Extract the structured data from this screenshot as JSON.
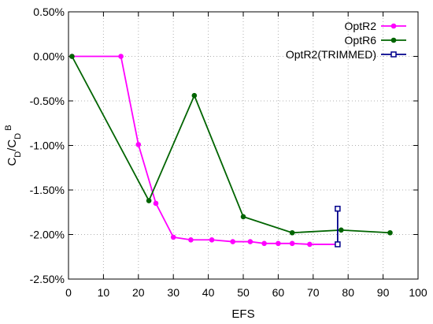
{
  "chart_data": {
    "type": "line",
    "xlabel": "EFS",
    "ylabel": {
      "main": "C",
      "sub1": "D",
      "mid": "/C",
      "sub2": "D",
      "sup": "B"
    },
    "xlim": [
      0,
      100
    ],
    "ylim": [
      -2.5,
      0.5
    ],
    "x_ticks": [
      0,
      10,
      20,
      30,
      40,
      50,
      60,
      70,
      80,
      90,
      100
    ],
    "y_ticks": [
      -2.5,
      -2.0,
      -1.5,
      -1.0,
      -0.5,
      0.0,
      0.5
    ],
    "x_tick_labels": [
      "0",
      "10",
      "20",
      "30",
      "40",
      "50",
      "60",
      "70",
      "80",
      "90",
      "100"
    ],
    "y_tick_labels": [
      "-2.50%",
      "-2.00%",
      "-1.50%",
      "-1.00%",
      "-0.50%",
      "0.00%",
      "0.50%"
    ],
    "grid": true,
    "legend_position": "top-right",
    "series": [
      {
        "name": "OptR2",
        "color": "#ff00ff",
        "marker": "circle",
        "points": [
          [
            1,
            0.0
          ],
          [
            15,
            0.0
          ],
          [
            20,
            -0.99
          ],
          [
            25,
            -1.65
          ],
          [
            30,
            -2.03
          ],
          [
            35,
            -2.06
          ],
          [
            41,
            -2.06
          ],
          [
            47,
            -2.08
          ],
          [
            52,
            -2.08
          ],
          [
            56,
            -2.1
          ],
          [
            60,
            -2.1
          ],
          [
            64,
            -2.1
          ],
          [
            69,
            -2.11
          ],
          [
            77,
            -2.11
          ]
        ]
      },
      {
        "name": "OptR6",
        "color": "#006400",
        "marker": "circle",
        "points": [
          [
            1,
            0.0
          ],
          [
            23,
            -1.62
          ],
          [
            36,
            -0.44
          ],
          [
            50,
            -1.8
          ],
          [
            64,
            -1.98
          ],
          [
            78,
            -1.95
          ],
          [
            92,
            -1.98
          ]
        ]
      },
      {
        "name": "OptR2(TRIMMED)",
        "color": "#00008b",
        "marker": "open-square",
        "points": [
          [
            77,
            -2.11
          ],
          [
            77,
            -1.71
          ]
        ]
      }
    ]
  }
}
